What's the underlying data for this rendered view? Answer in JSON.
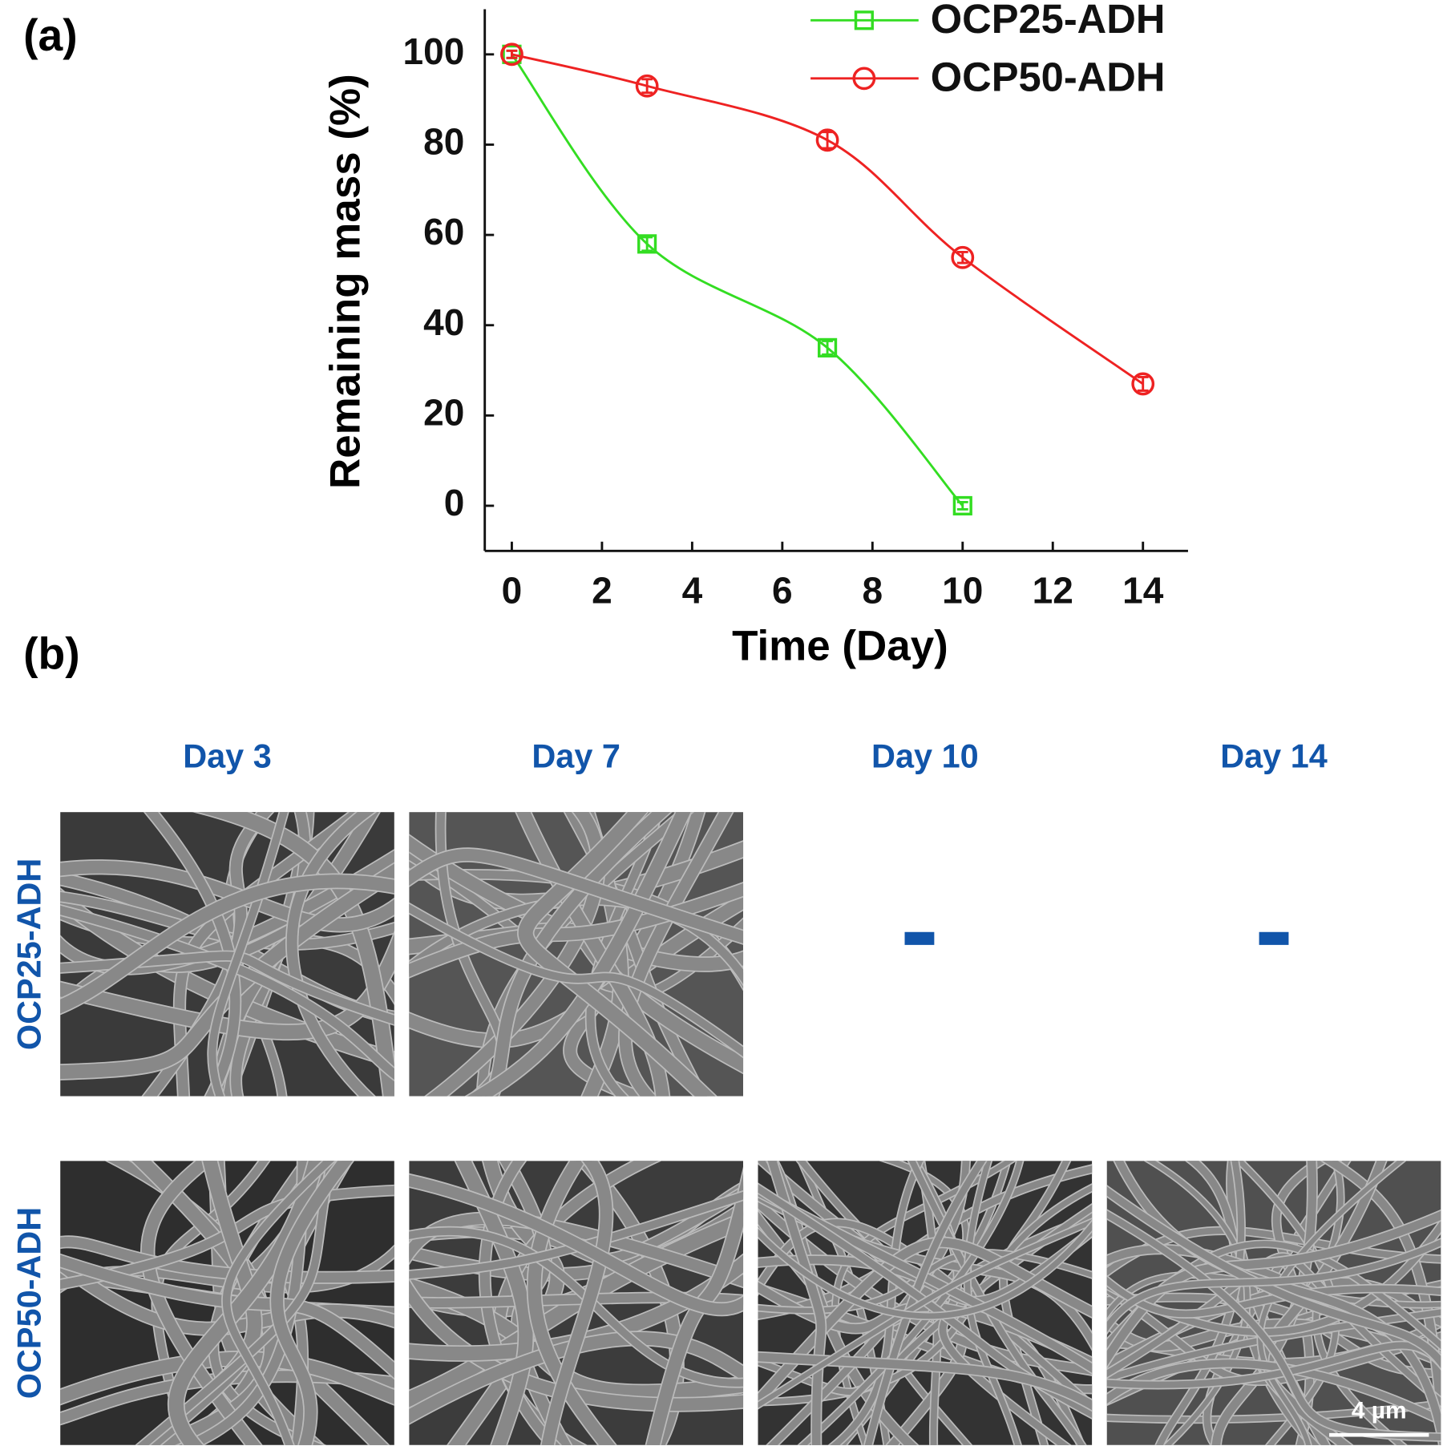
{
  "chart_data": {
    "type": "line",
    "panel_label": "(a)",
    "x_label": "Time (Day)",
    "y_label": "Remaining mass (%)",
    "xlim": [
      -0.6,
      15
    ],
    "xticks": [
      0,
      2,
      4,
      6,
      8,
      10,
      12,
      14
    ],
    "ylim": [
      -10,
      110
    ],
    "yticks": [
      0,
      20,
      40,
      60,
      80,
      100
    ],
    "legend": "upper right",
    "smooth": true,
    "series": [
      {
        "name": "OCP25-ADH",
        "color": "#33dd22",
        "marker": "square",
        "x": [
          0,
          3,
          7,
          10
        ],
        "values": [
          100,
          58,
          35,
          0
        ],
        "errors": [
          0.8,
          1.5,
          1.5,
          0.8
        ]
      },
      {
        "name": "OCP50-ADH",
        "color": "#ee2222",
        "marker": "circle",
        "x": [
          0,
          3,
          7,
          10,
          14
        ],
        "values": [
          100,
          93,
          81,
          55,
          27
        ],
        "errors": [
          0.8,
          1.5,
          1.8,
          1.2,
          1.5
        ]
      }
    ]
  },
  "images": {
    "panel_label": "(b)",
    "columns": [
      "Day 3",
      "Day 7",
      "Day 10",
      "Day 14"
    ],
    "rows": [
      "OCP25-ADH",
      "OCP50-ADH"
    ],
    "scale_bar": "4 µm"
  }
}
